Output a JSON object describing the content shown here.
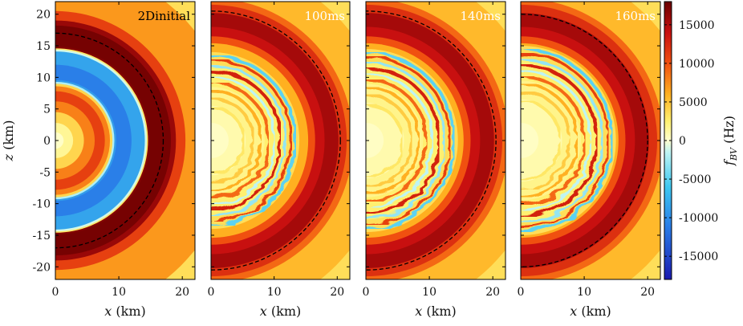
{
  "chart_data": {
    "type": "heatmap",
    "panels": [
      {
        "id": "panel-1",
        "label": "2Dinitial",
        "label_color": "#000000",
        "shock_radius_km": 17.0,
        "mode": "initial"
      },
      {
        "id": "panel-2",
        "label": "100ms",
        "label_color": "#ffffff",
        "shock_radius_km": 20.5,
        "mode": "evolved",
        "turb_front_km": 13.5
      },
      {
        "id": "panel-3",
        "label": "140ms",
        "label_color": "#ffffff",
        "shock_radius_km": 20.5,
        "mode": "evolved",
        "turb_front_km": 14.0
      },
      {
        "id": "panel-4",
        "label": "160ms",
        "label_color": "#ffffff",
        "shock_radius_km": 20.0,
        "mode": "evolved",
        "turb_front_km": 14.5
      }
    ],
    "xlabel": "x (km)",
    "ylabel": "z (km)",
    "colorbar_label": "f_BV (Hz)",
    "xlim": [
      0,
      22
    ],
    "ylim": [
      -22,
      22
    ],
    "xticks": [
      0,
      10,
      20
    ],
    "xtick_labels": [
      "0",
      "10",
      "20"
    ],
    "yticks": [
      20,
      15,
      10,
      5,
      0,
      -5,
      -10,
      -15,
      -20
    ],
    "ytick_labels": [
      "20",
      "15",
      "10",
      "5",
      "0",
      "-5",
      "-10",
      "-15",
      "-20"
    ],
    "colorbar_range": [
      -18000,
      18000
    ],
    "colorbar_ticks": [
      15000,
      10000,
      5000,
      0,
      -5000,
      -10000,
      -15000
    ],
    "colorbar_tick_labels": [
      "15000",
      "10000",
      "5000",
      "0",
      "-5000",
      "-10000",
      "-15000"
    ],
    "colormap_stops": [
      {
        "v": -18000,
        "c": "#1a1ab0"
      },
      {
        "v": -11000,
        "c": "#2a7fe8"
      },
      {
        "v": -6000,
        "c": "#3ec8f0"
      },
      {
        "v": -1500,
        "c": "#bff4f4"
      },
      {
        "v": 0,
        "c": "#ffffd0"
      },
      {
        "v": 2500,
        "c": "#fff070"
      },
      {
        "v": 6000,
        "c": "#ffb020"
      },
      {
        "v": 10000,
        "c": "#f05010"
      },
      {
        "v": 14000,
        "c": "#c81010"
      },
      {
        "v": 18000,
        "c": "#6a0000"
      }
    ],
    "shock_line_style": "dashed black",
    "grid": false
  }
}
